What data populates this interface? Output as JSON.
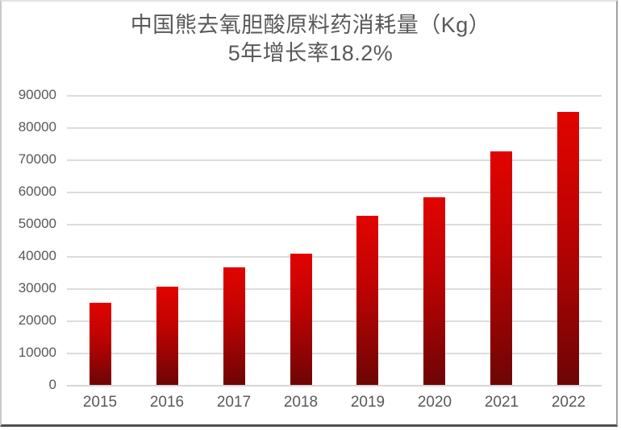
{
  "chart_data": {
    "type": "bar",
    "title": "中国熊去氧胆酸原料药消耗量（Kg）",
    "subtitle": "5年增长率18.2%",
    "categories": [
      "2015",
      "2016",
      "2017",
      "2018",
      "2019",
      "2020",
      "2021",
      "2022"
    ],
    "values": [
      25500,
      30400,
      36400,
      40800,
      52400,
      58200,
      72500,
      84700
    ],
    "yticks": [
      "90000",
      "80000",
      "70000",
      "60000",
      "50000",
      "40000",
      "30000",
      "20000",
      "10000",
      "0"
    ],
    "ylim": [
      0,
      90000
    ],
    "ytick_interval": 10000,
    "xlabel": "",
    "ylabel": "",
    "grid": true,
    "legend": false,
    "colors": {
      "bar_gradient_top": "#e10400",
      "bar_gradient_bottom": "#6e0505",
      "title_text": "#595959",
      "axis_text": "#595959",
      "gridline": "#dcdcdc",
      "background": "#ffffff"
    }
  }
}
